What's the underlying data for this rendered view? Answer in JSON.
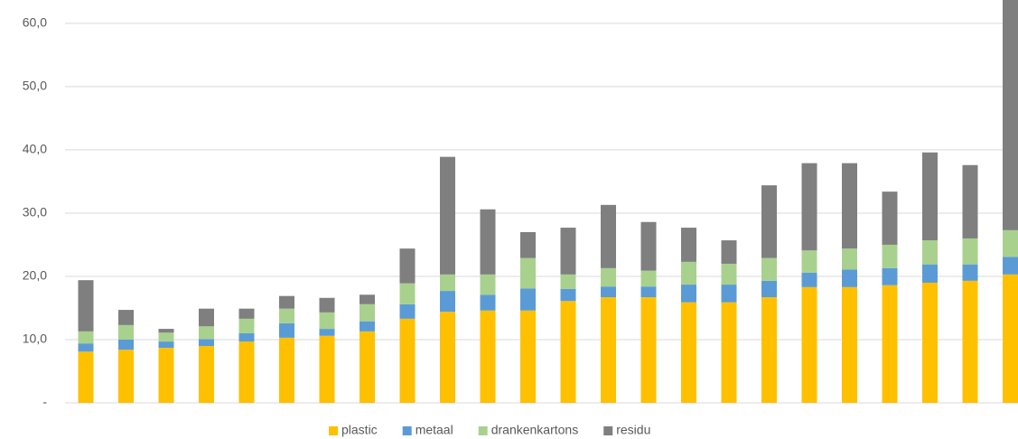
{
  "chart_data": {
    "type": "bar",
    "stacked": true,
    "categories": [
      null,
      null,
      null,
      null,
      null,
      null,
      null,
      null,
      null,
      null,
      null,
      null,
      null,
      null,
      null,
      null,
      null,
      null,
      null,
      null,
      null,
      null,
      null,
      null
    ],
    "series": [
      {
        "name": "plastic",
        "color": "#ffc000",
        "values": [
          8.1,
          8.4,
          8.7,
          9.0,
          9.7,
          10.3,
          10.6,
          11.3,
          13.3,
          14.4,
          14.6,
          14.6,
          16.1,
          16.7,
          16.7,
          15.9,
          15.9,
          16.7,
          18.3,
          18.3,
          18.6,
          19.0,
          19.3,
          20.3
        ]
      },
      {
        "name": "metaal",
        "color": "#5b9bd5",
        "values": [
          1.3,
          1.6,
          1.0,
          1.1,
          1.3,
          2.3,
          1.1,
          1.6,
          2.3,
          3.3,
          2.5,
          3.5,
          1.9,
          1.7,
          1.7,
          2.8,
          2.8,
          2.6,
          2.3,
          2.8,
          2.7,
          2.9,
          2.6,
          2.8
        ]
      },
      {
        "name": "drankenkartons",
        "color": "#a9d18e",
        "values": [
          1.9,
          2.3,
          1.4,
          2.0,
          2.3,
          2.3,
          2.6,
          2.7,
          3.3,
          2.6,
          3.2,
          4.8,
          2.3,
          2.9,
          2.5,
          3.6,
          3.3,
          3.6,
          3.5,
          3.3,
          3.7,
          3.8,
          4.1,
          4.2
        ]
      },
      {
        "name": "residu",
        "color": "#7f7f7f",
        "values": [
          8.1,
          2.4,
          0.6,
          2.8,
          1.6,
          2.0,
          2.3,
          1.5,
          5.5,
          18.6,
          10.3,
          4.1,
          7.4,
          10.0,
          7.7,
          5.4,
          3.7,
          11.5,
          13.8,
          13.5,
          8.4,
          13.9,
          11.6,
          37.2
        ]
      }
    ],
    "ylim": [
      0,
      63.7
    ],
    "yticks": [
      {
        "value": 0,
        "label": "-"
      },
      {
        "value": 10,
        "label": "10,0"
      },
      {
        "value": 20,
        "label": "20,0"
      },
      {
        "value": 30,
        "label": "30,0"
      },
      {
        "value": 40,
        "label": "40,0"
      },
      {
        "value": 50,
        "label": "50,0"
      },
      {
        "value": 60,
        "label": "60,0"
      }
    ],
    "grid": true,
    "legend": "bottom"
  }
}
